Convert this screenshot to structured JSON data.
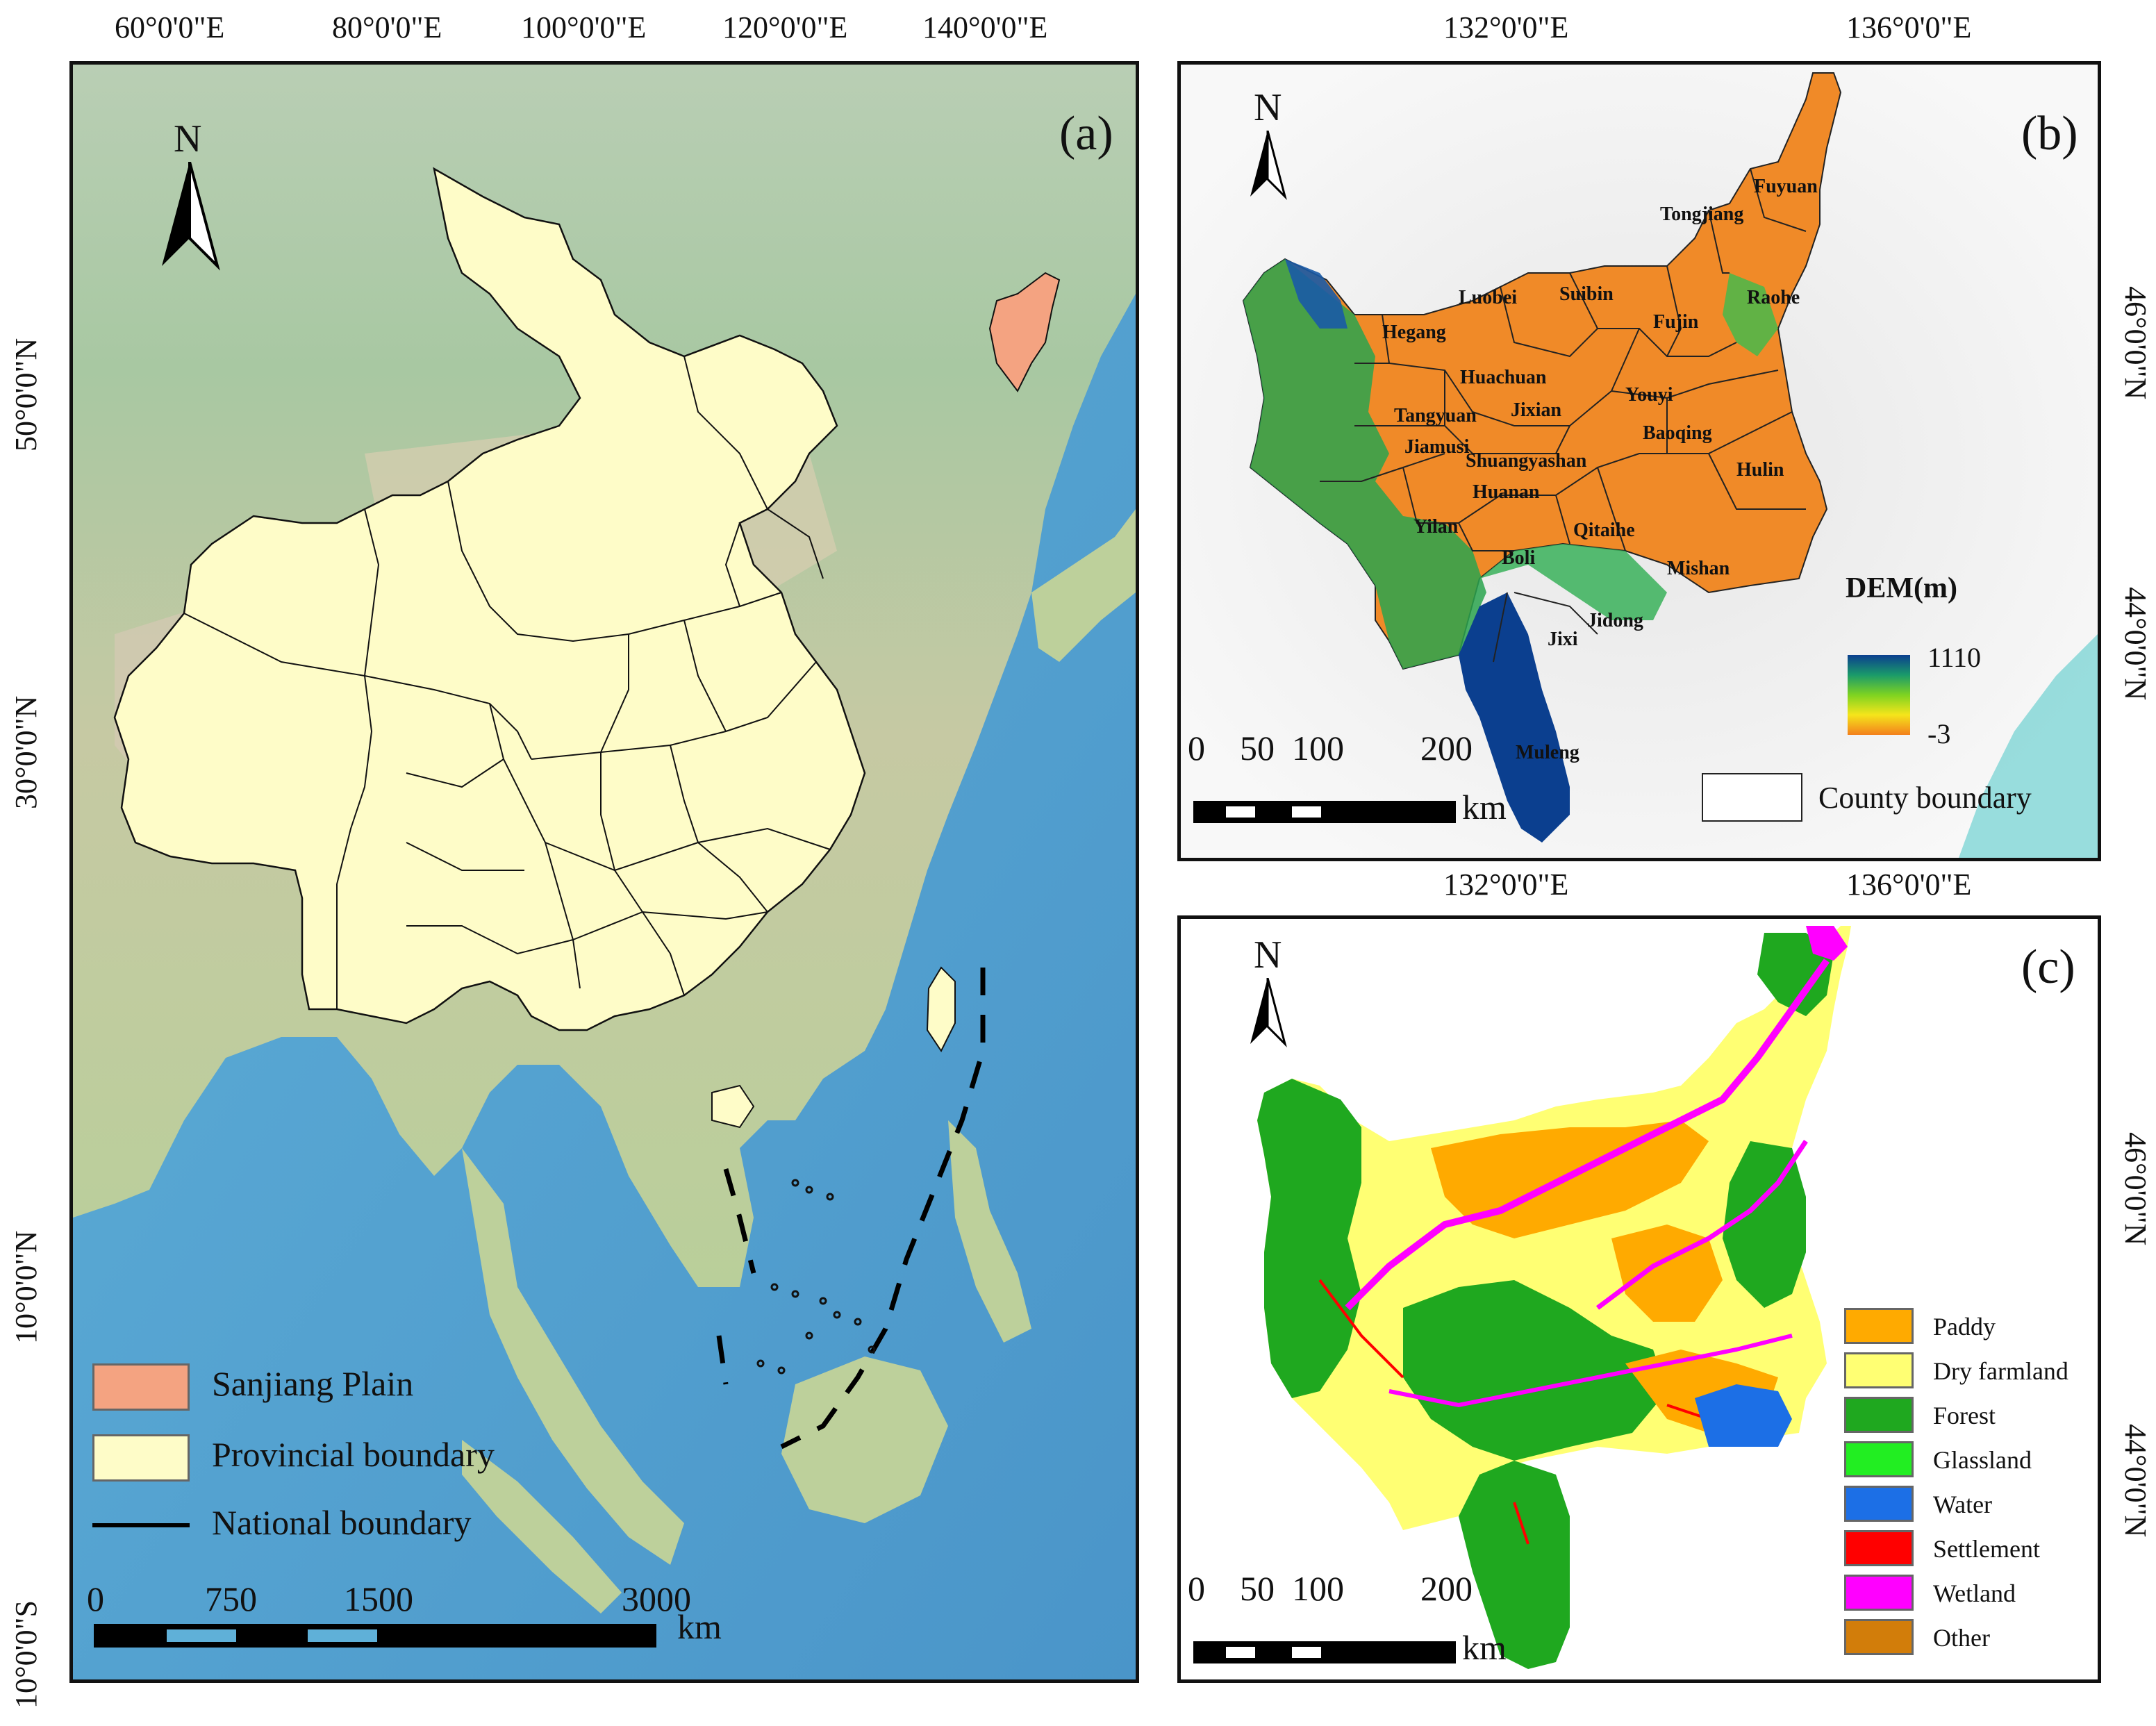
{
  "panel_a": {
    "label": "(a)",
    "north": "N",
    "top_ticks": [
      "60°0'0\"E",
      "80°0'0\"E",
      "100°0'0\"E",
      "120°0'0\"E",
      "140°0'0\"E"
    ],
    "left_ticks": [
      "50°0'0\"N",
      "30°0'0\"N",
      "10°0'0\"N",
      "10°0'0\"S"
    ],
    "scale_labels": [
      "0",
      "750",
      "1500",
      "3000"
    ],
    "scale_unit": "km",
    "legend": [
      {
        "label": "Sanjiang Plain",
        "color": "#f4a381"
      },
      {
        "label": "Provincial boundary",
        "color": "#fefcc8"
      },
      {
        "label": "National boundary",
        "color": "#000000"
      }
    ]
  },
  "panel_b": {
    "label": "(b)",
    "north": "N",
    "top_ticks": [
      "132°0'0\"E",
      "136°0'0\"E"
    ],
    "right_ticks": [
      "46°0'0\"N",
      "44°0'0\"N"
    ],
    "dem_title": "DEM(m)",
    "dem_max": "1110",
    "dem_min": "-3",
    "county_boundary": "County boundary",
    "scale_labels": [
      "0",
      "50",
      "100",
      "200"
    ],
    "scale_unit": "km",
    "counties": [
      "Fuyuan",
      "Tongjiang",
      "Luobei",
      "Suibin",
      "Fujin",
      "Raohe",
      "Hegang",
      "Huachuan",
      "Youyi",
      "Tangyuan",
      "Jixian",
      "Baoqing",
      "Jiamusi",
      "Shuangyashan",
      "Hulin",
      "Huanan",
      "Yilan",
      "Qitaihe",
      "Boli",
      "Mishan",
      "Jidong",
      "Jixi",
      "Muleng"
    ]
  },
  "panel_c": {
    "label": "(c)",
    "north": "N",
    "bottom_ticks": [
      "132°0'0\"E",
      "136°0'0\"E"
    ],
    "right_ticks": [
      "46°0'0\"N",
      "44°0'0\"N"
    ],
    "scale_labels": [
      "0",
      "50",
      "100",
      "200"
    ],
    "scale_unit": "km",
    "legend": [
      {
        "label": "Paddy",
        "color": "#ffaa00"
      },
      {
        "label": "Dry farmland",
        "color": "#ffff73"
      },
      {
        "label": "Forest",
        "color": "#1fa81f"
      },
      {
        "label": "Glassland",
        "color": "#22ee22"
      },
      {
        "label": "Water",
        "color": "#1c6fe6"
      },
      {
        "label": "Settlement",
        "color": "#ff0000"
      },
      {
        "label": "Wetland",
        "color": "#ff00ff"
      },
      {
        "label": "Other",
        "color": "#d27d0a"
      }
    ]
  }
}
